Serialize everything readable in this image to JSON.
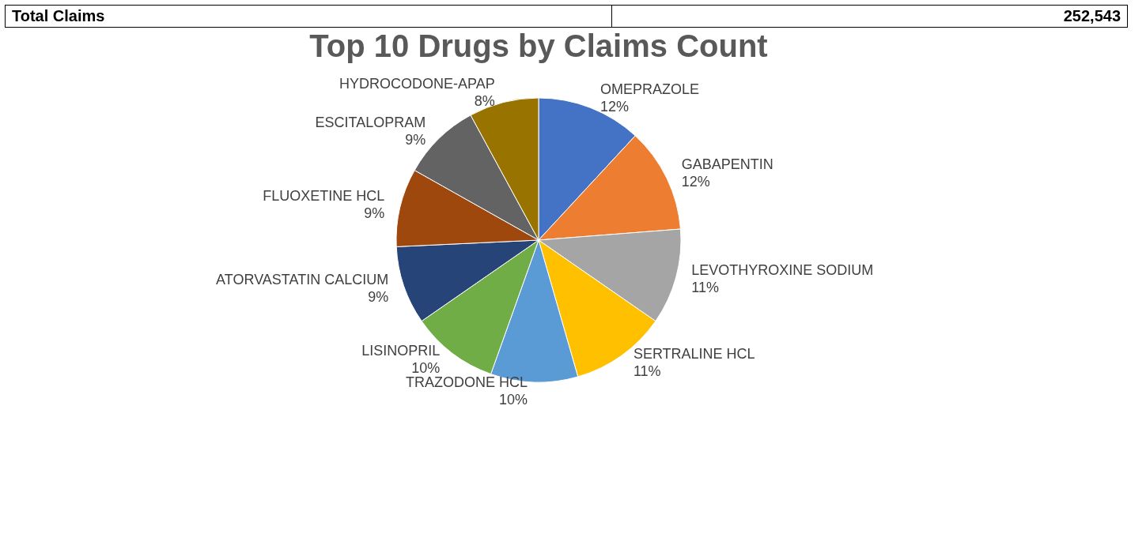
{
  "chart_data": {
    "type": "pie",
    "title": "Top 10 Drugs by Claims Count",
    "categories": [
      "OMEPRAZOLE",
      "GABAPENTIN",
      "LEVOTHYROXINE SODIUM",
      "SERTRALINE HCL",
      "TRAZODONE HCL",
      "LISINOPRIL",
      "ATORVASTATIN CALCIUM",
      "FLUOXETINE HCL",
      "ESCITALOPRAM",
      "HYDROCODONE-APAP"
    ],
    "values": [
      12,
      12,
      11,
      11,
      10,
      10,
      9,
      9,
      9,
      8
    ],
    "value_labels": [
      "12%",
      "12%",
      "11%",
      "11%",
      "10%",
      "10%",
      "9%",
      "9%",
      "9%",
      "8%"
    ],
    "colors": [
      "#4472c4",
      "#ed7d31",
      "#a5a5a5",
      "#ffc000",
      "#5b9bd5",
      "#70ad47",
      "#264478",
      "#9e480e",
      "#636363",
      "#997300"
    ],
    "annotations": [
      "Total Claims",
      "252,543"
    ],
    "legend": false
  }
}
